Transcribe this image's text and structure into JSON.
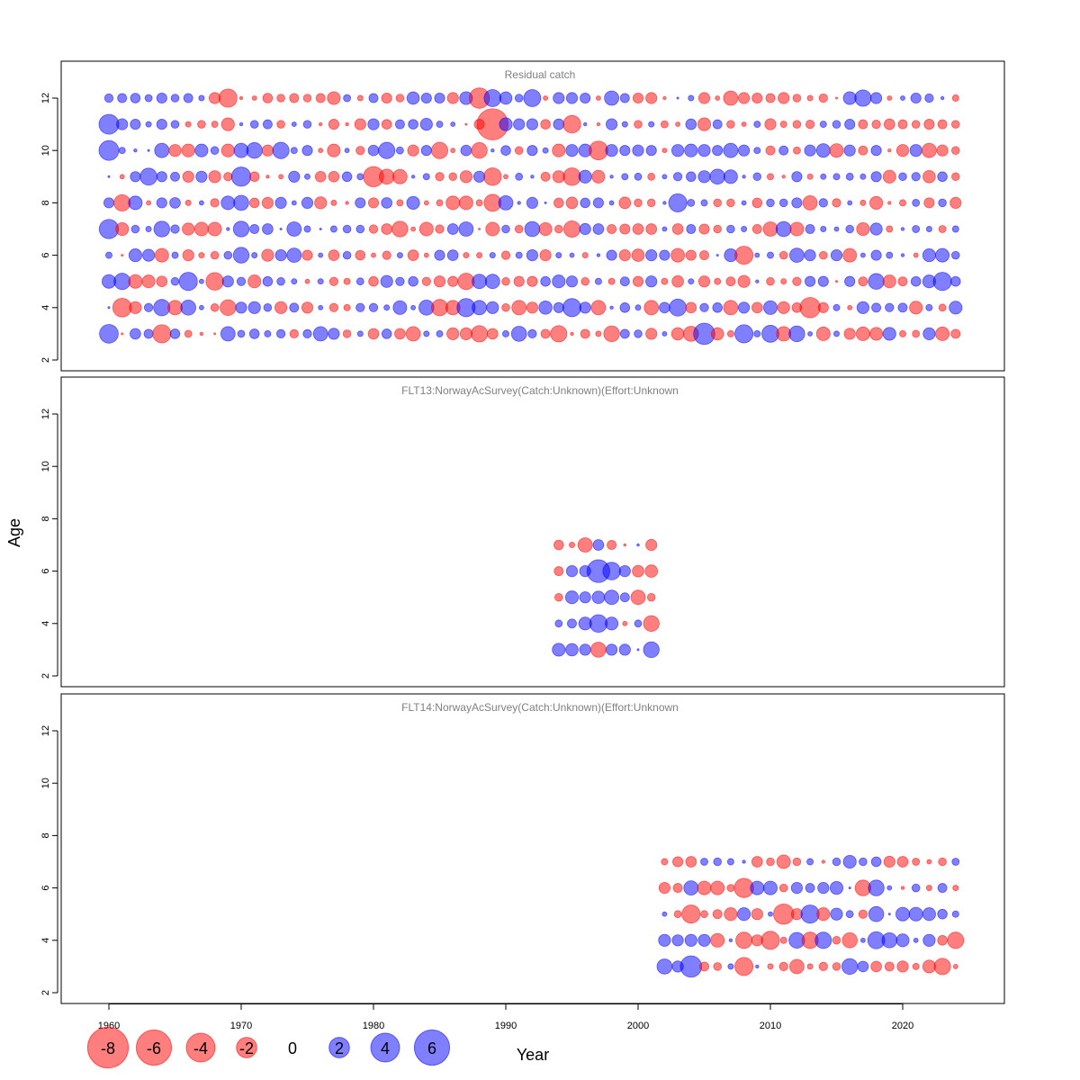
{
  "chart_data": {
    "type": "bubble",
    "xlabel": "Year",
    "ylabel": "Age",
    "xlim": [
      1956,
      2027
    ],
    "ylim": [
      1.5,
      13.5
    ],
    "x_ticks": [
      1960,
      1970,
      1980,
      1990,
      2000,
      2010,
      2020
    ],
    "y_ticks": [
      2,
      4,
      6,
      8,
      10,
      12
    ],
    "size_encoding": "radius proportional to sqrt(|residual|)",
    "colors": {
      "negative": "#ff0000",
      "positive": "#0000ff"
    },
    "legend": {
      "values": [
        -8,
        -6,
        -4,
        -2,
        0,
        2,
        4,
        6
      ],
      "placement": "bottom-left"
    },
    "panels": [
      {
        "title": "Residual catch",
        "start_year": 1960,
        "ages": [
          12,
          11,
          10,
          9,
          8,
          7,
          6,
          5,
          4,
          3
        ],
        "values": [
          [
            0.35,
            0.4,
            0.45,
            0.25,
            0.5,
            0.3,
            0.4,
            0.15,
            -0.6,
            -1.6,
            -0.05,
            -0.1,
            -0.45,
            -0.3,
            -0.4,
            -0.3,
            -0.4,
            -0.8,
            0.25,
            -0.15,
            0.4,
            -0.5,
            -0.3,
            0.75,
            0.5,
            0.5,
            -0.6,
            0.8,
            -2.0,
            1.4,
            0.75,
            0.3,
            1.4,
            -0.1,
            0.6,
            0.6,
            0.5,
            -0.1,
            1.0,
            0.4,
            -0.5,
            -0.6,
            -0.05,
            0.02,
            0.15,
            -0.6,
            -0.1,
            -1.0,
            -0.6,
            -0.5,
            -0.4,
            -0.6,
            -0.3,
            -0.15,
            -0.35,
            -0.02,
            0.8,
            1.3,
            0.6,
            -0.1,
            0.1,
            0.5,
            0.35,
            0.05,
            -0.2
          ],
          [
            1.9,
            0.6,
            0.5,
            0.15,
            0.5,
            0.3,
            -0.15,
            -0.3,
            -0.2,
            -0.8,
            0.05,
            0.3,
            0.4,
            -0.3,
            0.1,
            0.3,
            -0.05,
            -0.5,
            -0.05,
            -0.6,
            0.6,
            -0.45,
            0.4,
            0.45,
            0.7,
            0.2,
            0.1,
            -0.02,
            -0.5,
            -4.7,
            0.8,
            0.6,
            0.6,
            -0.45,
            0.55,
            -1.5,
            0.05,
            -0.05,
            0.6,
            0.15,
            -0.3,
            0.15,
            -0.25,
            -0.1,
            0.55,
            -0.8,
            0.4,
            -0.3,
            -0.1,
            0.2,
            -0.6,
            -0.2,
            -0.3,
            -0.35,
            0.2,
            0.3,
            0.5,
            -0.4,
            -0.35,
            -0.55,
            -0.4,
            -0.3,
            -0.5,
            -0.4,
            -0.3
          ],
          [
            1.9,
            0.2,
            0.05,
            0.02,
            1.0,
            -0.7,
            -0.8,
            0.8,
            0.3,
            -0.8,
            1.0,
            1.2,
            -0.6,
            1.3,
            0.2,
            0.5,
            -0.1,
            -0.8,
            0.1,
            -0.35,
            0.55,
            1.3,
            0.25,
            -0.6,
            0.5,
            -1.3,
            -0.1,
            0.55,
            -1.2,
            0.05,
            0.45,
            -0.3,
            0.5,
            0.15,
            -0.8,
            0.7,
            0.8,
            -1.7,
            0.7,
            0.5,
            0.6,
            0.5,
            -0.1,
            0.7,
            0.8,
            0.7,
            0.5,
            1.0,
            0.6,
            0.2,
            -0.4,
            0.4,
            -0.25,
            0.6,
            0.9,
            -0.9,
            0.6,
            -0.4,
            0.5,
            -0.05,
            -0.7,
            0.7,
            -1.0,
            -0.6,
            -0.3
          ],
          [
            0.02,
            -0.1,
            0.5,
            1.4,
            0.5,
            0.4,
            -0.6,
            0.6,
            -0.7,
            -0.35,
            1.8,
            -0.45,
            -0.05,
            -0.1,
            0.6,
            0.15,
            -0.55,
            -0.55,
            0.45,
            0.2,
            -2.0,
            -1.1,
            -1.0,
            0.05,
            0.2,
            -0.35,
            -0.3,
            -0.7,
            0.6,
            -1.5,
            -0.1,
            0.25,
            0.05,
            -0.4,
            -0.7,
            -1.5,
            0.8,
            -0.8,
            0.05,
            0.2,
            0.25,
            -0.25,
            0.1,
            0.35,
            0.45,
            0.7,
            1.1,
            0.9,
            0.05,
            0.3,
            -0.2,
            -0.05,
            0.5,
            -0.15,
            0.15,
            0.2,
            0.25,
            0.15,
            0.5,
            -0.8,
            0.3,
            0.35,
            -0.75,
            0.45,
            -0.3
          ],
          [
            0.5,
            -1.3,
            0.9,
            -0.1,
            0.5,
            0.55,
            -0.15,
            0.1,
            -0.35,
            0.9,
            1.1,
            -0.45,
            -0.6,
            0.6,
            0.1,
            0.6,
            -0.7,
            -0.15,
            -0.05,
            0.5,
            -0.5,
            0.55,
            -0.2,
            0.8,
            -0.1,
            -0.2,
            -0.9,
            -0.9,
            -0.2,
            -1.4,
            1.0,
            0.05,
            0.6,
            0.02,
            -0.45,
            -0.65,
            0.45,
            0.5,
            0.1,
            -0.65,
            -0.3,
            -0.3,
            0.05,
            1.6,
            0.25,
            0.2,
            -0.3,
            -0.3,
            0.1,
            -0.45,
            0.3,
            0.3,
            0.5,
            -1.0,
            0.35,
            -0.35,
            0.1,
            -0.15,
            -0.8,
            -0.05,
            -0.2,
            0.25,
            -0.5,
            0.3,
            -0.6
          ],
          [
            1.8,
            -0.8,
            0.3,
            0.15,
            1.2,
            0.35,
            -0.7,
            -0.9,
            -0.9,
            0.05,
            1.2,
            0.4,
            0.55,
            0.02,
            1.0,
            0.2,
            0.02,
            0.2,
            0.3,
            0.3,
            -0.35,
            -0.55,
            -1.2,
            -0.1,
            -0.9,
            -0.35,
            0.55,
            1.0,
            -0.02,
            -0.9,
            0.3,
            -0.3,
            1.1,
            -0.8,
            -0.3,
            -1.3,
            0.6,
            0.55,
            -0.4,
            -0.5,
            -0.55,
            -0.55,
            0.1,
            -0.55,
            0.4,
            -0.5,
            -0.3,
            0.3,
            0.15,
            -0.4,
            -1.0,
            1.1,
            -0.9,
            0.4,
            0.15,
            0.1,
            0.3,
            -0.8,
            0.7,
            -0.2,
            0.05,
            0.25,
            0.15,
            -0.25,
            0.2
          ],
          [
            0.2,
            -0.02,
            0.8,
            0.7,
            -0.9,
            0.2,
            -0.6,
            -0.15,
            -0.3,
            0.3,
            1.2,
            0.15,
            -0.7,
            0.6,
            1.0,
            -0.5,
            0.1,
            -0.55,
            0.3,
            -0.45,
            -0.1,
            -0.35,
            0.15,
            -0.55,
            -0.1,
            0.5,
            0.55,
            -0.15,
            -0.15,
            0.15,
            -0.35,
            0.2,
            0.6,
            -0.6,
            0.15,
            0.1,
            -0.15,
            0.05,
            0.5,
            -0.6,
            -0.75,
            0.6,
            0.5,
            -0.9,
            -0.5,
            -0.4,
            0.02,
            0.8,
            -1.6,
            0.1,
            0.2,
            -0.3,
            1.0,
            0.6,
            -0.3,
            0.6,
            -0.9,
            0.1,
            0.5,
            0.2,
            0.05,
            -0.1,
            0.8,
            0.9,
            0.3
          ],
          [
            0.9,
            1.3,
            -0.9,
            -0.8,
            -0.55,
            0.3,
            1.6,
            0.1,
            -1.5,
            0.6,
            0.35,
            -0.8,
            0.45,
            0.3,
            0.15,
            -0.1,
            0.15,
            -0.35,
            -0.2,
            0.25,
            -0.45,
            0.7,
            0.35,
            0.45,
            -0.35,
            -0.6,
            -0.5,
            -1.3,
            1.0,
            1.0,
            -0.3,
            -0.5,
            -0.5,
            0.45,
            0.8,
            0.6,
            -0.3,
            0.2,
            -0.2,
            0.4,
            -0.5,
            0.6,
            -0.2,
            -0.65,
            0.15,
            -0.6,
            -0.2,
            -0.4,
            -0.7,
            0.05,
            -0.3,
            -0.15,
            -0.35,
            0.5,
            0.5,
            -0.02,
            0.5,
            -0.4,
            1.2,
            -0.8,
            -0.4,
            0.45,
            0.8,
            1.6,
            0.45
          ],
          [
            0.02,
            -1.7,
            -0.7,
            0.35,
            1.3,
            -1.0,
            1.1,
            0.1,
            -0.3,
            -1.2,
            0.6,
            0.7,
            0.3,
            -0.7,
            0.4,
            -0.6,
            0.1,
            -0.35,
            -0.2,
            0.35,
            0.35,
            0.15,
            0.9,
            0.1,
            1.1,
            -1.3,
            -1.0,
            1.6,
            1.0,
            0.7,
            -0.3,
            -1.0,
            -0.6,
            0.85,
            0.5,
            1.6,
            0.6,
            -1.0,
            0.05,
            0.45,
            0.15,
            -1.0,
            0.55,
            1.4,
            -0.55,
            0.35,
            0.45,
            -1.0,
            0.6,
            -0.55,
            0.9,
            -0.7,
            -0.45,
            -2.0,
            -0.5,
            0.2,
            -0.1,
            0.7,
            0.4,
            0.35,
            0.4,
            -0.8,
            0.2,
            -0.25,
            0.8
          ],
          [
            1.7,
            -0.02,
            0.55,
            0.4,
            -1.6,
            0.45,
            -0.25,
            -0.05,
            -0.02,
            1.0,
            0.25,
            0.45,
            0.2,
            0.35,
            -0.35,
            0.35,
            1.0,
            0.6,
            -0.3,
            0.15,
            -0.55,
            0.45,
            -0.55,
            -1.0,
            0.15,
            0.2,
            -0.7,
            -0.7,
            -1.3,
            -0.55,
            0.2,
            1.1,
            0.35,
            -0.4,
            -1.3,
            -0.05,
            -0.4,
            -0.15,
            -1.2,
            0.4,
            0.3,
            -0.6,
            0.1,
            -0.75,
            -1.1,
            2.2,
            -0.75,
            -0.2,
            1.6,
            0.2,
            1.4,
            -1.0,
            1.2,
            0.1,
            -0.9,
            0.15,
            -0.6,
            -0.9,
            -0.8,
            0.8,
            -0.2,
            -0.25,
            0.7,
            -0.9,
            -0.4
          ]
        ]
      },
      {
        "title": "FLT13:NorwayAcSurvey(Catch:Unknown)(Effort:Unknown",
        "start_year": 1994,
        "ages": [
          7,
          6,
          5,
          4,
          3
        ],
        "values": [
          [
            -0.45,
            -0.15,
            -1.0,
            0.55,
            -0.4,
            -0.03,
            0.03,
            -0.6
          ],
          [
            -0.4,
            0.6,
            0.6,
            2.5,
            1.5,
            0.6,
            -0.65,
            -0.75
          ],
          [
            -0.3,
            0.8,
            0.6,
            0.75,
            1.0,
            0.4,
            -1.0,
            -0.3
          ],
          [
            0.25,
            0.4,
            0.8,
            1.5,
            0.8,
            -0.1,
            0.25,
            -1.2
          ],
          [
            0.8,
            0.75,
            0.6,
            -1.1,
            0.6,
            0.6,
            0.02,
            1.2
          ]
        ]
      },
      {
        "title": "FLT14:NorwayAcSurvey(Catch:Unknown)(Effort:Unknown",
        "start_year": 2002,
        "ages": [
          7,
          6,
          5,
          4,
          3
        ],
        "values": [
          [
            -0.2,
            -0.5,
            -0.55,
            0.25,
            0.3,
            0.2,
            0.05,
            -0.55,
            -0.3,
            -0.9,
            -0.3,
            0.2,
            -0.05,
            0.3,
            0.8,
            0.3,
            0.45,
            -0.6,
            -0.55,
            -0.25,
            -0.1,
            -0.3,
            0.25
          ],
          [
            -0.6,
            -0.4,
            1.0,
            -0.9,
            -0.9,
            -0.25,
            -1.8,
            0.9,
            0.9,
            -0.3,
            0.6,
            0.4,
            0.6,
            0.8,
            0.02,
            -1.2,
            1.2,
            0.1,
            -0.05,
            0.3,
            -0.15,
            0.4,
            -0.15
          ],
          [
            0.1,
            -0.25,
            -1.6,
            -0.25,
            -0.4,
            -0.8,
            0.8,
            -0.6,
            0.1,
            -2.0,
            -0.6,
            1.6,
            -0.8,
            0.7,
            0.25,
            -0.35,
            1.1,
            0.02,
            0.9,
            0.9,
            0.8,
            0.45,
            0.2
          ],
          [
            0.7,
            0.6,
            0.7,
            0.7,
            -0.9,
            0.05,
            -1.3,
            -0.6,
            -1.6,
            -0.2,
            1.2,
            -1.3,
            1.3,
            -0.3,
            -1.1,
            0.1,
            1.4,
            1.1,
            0.8,
            0.1,
            0.7,
            -0.45,
            -1.3
          ],
          [
            1.1,
            0.6,
            2.2,
            -0.4,
            -0.3,
            0.15,
            -1.6,
            0.05,
            -0.15,
            -0.35,
            -1.0,
            -0.15,
            -0.35,
            -0.3,
            1.2,
            0.55,
            -0.55,
            -0.4,
            -0.6,
            -0.2,
            -0.8,
            -1.3,
            -0.1
          ]
        ]
      }
    ]
  }
}
